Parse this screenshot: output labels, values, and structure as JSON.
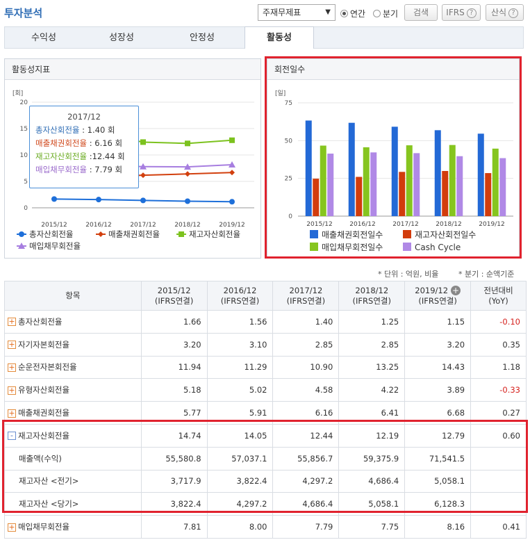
{
  "header": {
    "title": "투자분석",
    "select_value": "주재무제표",
    "radio_annual": "연간",
    "radio_quarter": "분기",
    "search_label": "검색",
    "ifrs_label": "IFRS",
    "formula_label": "산식"
  },
  "tabs": [
    "수익성",
    "성장성",
    "안정성",
    "활동성"
  ],
  "active_tab": "활동성",
  "left_chart": {
    "header": "활동성지표",
    "unit": "[회]",
    "tooltip": {
      "date": "2017/12",
      "rows": [
        {
          "label": "총자산회전율",
          "value": ": 1.40 회",
          "color": "#2f6db5"
        },
        {
          "label": "매출채권회전율",
          "value": ": 6.16 회",
          "color": "#d04a1e"
        },
        {
          "label": "재고자산회전율",
          "value": ":12.44 회",
          "color": "#6aab21"
        },
        {
          "label": "매입채무회전율",
          "value": ": 7.79 회",
          "color": "#9a6acb"
        }
      ]
    }
  },
  "chart_data": [
    {
      "type": "line",
      "title": "활동성지표",
      "ylabel": "[회]",
      "x": [
        "2015/12",
        "2016/12",
        "2017/12",
        "2018/12",
        "2019/12"
      ],
      "yticks": [
        "0",
        "5",
        "10",
        "15",
        "20"
      ],
      "ylim": [
        0,
        20
      ],
      "series": [
        {
          "name": "총자산회전율",
          "color": "#1e6fd9",
          "marker": "circle",
          "values": [
            1.66,
            1.56,
            1.4,
            1.25,
            1.15
          ]
        },
        {
          "name": "매출채권회전율",
          "color": "#d2400e",
          "marker": "diamond",
          "values": [
            5.77,
            5.91,
            6.16,
            6.41,
            6.68
          ]
        },
        {
          "name": "재고자산회전율",
          "color": "#7cc21e",
          "marker": "square",
          "values": [
            14.74,
            14.05,
            12.44,
            12.19,
            12.79
          ]
        },
        {
          "name": "매입채무회전율",
          "color": "#a77ee0",
          "marker": "triangle",
          "values": [
            7.81,
            8.0,
            7.79,
            7.75,
            8.16
          ]
        }
      ],
      "legend": "bottom"
    },
    {
      "type": "bar",
      "title": "회전일수",
      "ylabel": "[일]",
      "categories": [
        "2015/12",
        "2016/12",
        "2017/12",
        "2018/12",
        "2019/12"
      ],
      "yticks": [
        "0",
        "25",
        "50",
        "75"
      ],
      "ylim": [
        0,
        75
      ],
      "series": [
        {
          "name": "매출채권회전일수",
          "color": "#2369d6",
          "values": [
            63.3,
            61.8,
            59.2,
            56.9,
            54.6
          ]
        },
        {
          "name": "재고자산회전일수",
          "color": "#d23c0c",
          "values": [
            24.8,
            26.0,
            29.3,
            29.9,
            28.5
          ]
        },
        {
          "name": "매입채무회전일수",
          "color": "#86c51f",
          "values": [
            46.7,
            45.6,
            46.9,
            47.1,
            44.7
          ]
        },
        {
          "name": "Cash Cycle",
          "color": "#b089e6",
          "values": [
            41.4,
            42.2,
            41.7,
            39.7,
            38.4
          ]
        }
      ],
      "legend": "bottom"
    }
  ],
  "notes": {
    "unit": "* 단위 : 억원, 비율",
    "quarter": "* 분기 : 순액기준"
  },
  "table": {
    "header_item": "항목",
    "periods": [
      {
        "date": "2015/12",
        "basis": "(IFRS연결)"
      },
      {
        "date": "2016/12",
        "basis": "(IFRS연결)"
      },
      {
        "date": "2017/12",
        "basis": "(IFRS연결)"
      },
      {
        "date": "2018/12",
        "basis": "(IFRS연결)"
      },
      {
        "date": "2019/12",
        "basis": "(IFRS연결)"
      }
    ],
    "yoy_header_1": "전년대비",
    "yoy_header_2": "(YoY)",
    "rows": [
      {
        "label": "총자산회전율",
        "expand": "+",
        "values": [
          "1.66",
          "1.56",
          "1.40",
          "1.25",
          "1.15"
        ],
        "yoy": "-0.10",
        "neg": true
      },
      {
        "label": "자기자본회전율",
        "expand": "+",
        "values": [
          "3.20",
          "3.10",
          "2.85",
          "2.85",
          "3.20"
        ],
        "yoy": "0.35",
        "neg": false
      },
      {
        "label": "순운전자본회전율",
        "expand": "+",
        "values": [
          "11.94",
          "11.29",
          "10.90",
          "13.25",
          "14.43"
        ],
        "yoy": "1.18",
        "neg": false
      },
      {
        "label": "유형자산회전율",
        "expand": "+",
        "values": [
          "5.18",
          "5.02",
          "4.58",
          "4.22",
          "3.89"
        ],
        "yoy": "-0.33",
        "neg": true
      },
      {
        "label": "매출채권회전율",
        "expand": "+",
        "values": [
          "5.77",
          "5.91",
          "6.16",
          "6.41",
          "6.68"
        ],
        "yoy": "0.27",
        "neg": false
      },
      {
        "label": "재고자산회전율",
        "expand": "-",
        "values": [
          "14.74",
          "14.05",
          "12.44",
          "12.19",
          "12.79"
        ],
        "yoy": "0.60",
        "neg": false
      },
      {
        "label": "매출액(수익)",
        "sub": true,
        "values": [
          "55,580.8",
          "57,037.1",
          "55,856.7",
          "59,375.9",
          "71,541.5"
        ],
        "yoy": "",
        "neg": false
      },
      {
        "label": "재고자산 <전기>",
        "sub": true,
        "values": [
          "3,717.9",
          "3,822.4",
          "4,297.2",
          "4,686.4",
          "5,058.1"
        ],
        "yoy": "",
        "neg": false
      },
      {
        "label": "재고자산 <당기>",
        "sub": true,
        "values": [
          "3,822.4",
          "4,297.2",
          "4,686.4",
          "5,058.1",
          "6,128.3"
        ],
        "yoy": "",
        "neg": false
      },
      {
        "label": "매입채무회전율",
        "expand": "+",
        "values": [
          "7.81",
          "8.00",
          "7.79",
          "7.75",
          "8.16"
        ],
        "yoy": "0.41",
        "neg": false
      }
    ]
  }
}
